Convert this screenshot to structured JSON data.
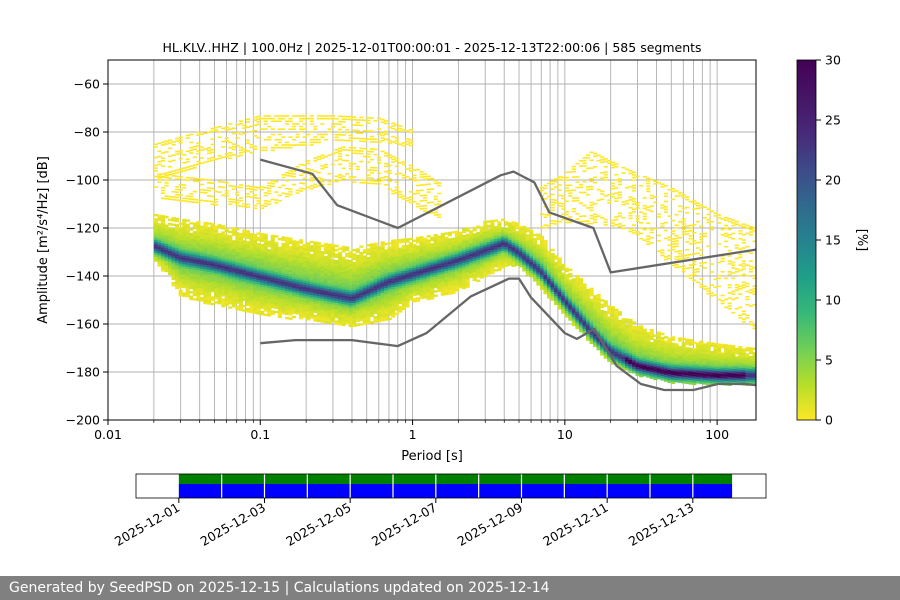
{
  "chart_data": {
    "type": "heatmap",
    "title": "HL.KLV..HHZ | 100.0Hz | 2025-12-01T00:00:01 - 2025-12-13T22:00:06 | 585 segments",
    "xlabel": "Period [s]",
    "ylabel": "Amplitude [m²/s⁴/Hz] [dB]",
    "x_scale": "log",
    "xlim": [
      0.01,
      180
    ],
    "ylim": [
      -200,
      -50
    ],
    "x_ticks": [
      "0.01",
      "0.1",
      "1",
      "10",
      "100"
    ],
    "y_ticks": [
      "−200",
      "−180",
      "−160",
      "−140",
      "−120",
      "−100",
      "−80",
      "−60"
    ],
    "grid": "vertical period grid lines + horizontal major lines",
    "colorbar": {
      "label": "[%]",
      "range": [
        0,
        30
      ],
      "ticks": [
        "0",
        "5",
        "10",
        "15",
        "20",
        "25",
        "30"
      ],
      "colormap": "viridis reversed (yellow low, purple high)"
    },
    "psd_mode": [
      [
        0.02,
        -127
      ],
      [
        0.03,
        -132
      ],
      [
        0.05,
        -135
      ],
      [
        0.1,
        -140
      ],
      [
        0.2,
        -145
      ],
      [
        0.4,
        -149
      ],
      [
        0.7,
        -142
      ],
      [
        1,
        -139
      ],
      [
        2,
        -133
      ],
      [
        3,
        -129
      ],
      [
        4,
        -126
      ],
      [
        5,
        -130
      ],
      [
        7,
        -138
      ],
      [
        10,
        -150
      ],
      [
        15,
        -163
      ],
      [
        20,
        -171
      ],
      [
        30,
        -177
      ],
      [
        50,
        -180
      ],
      [
        100,
        -181
      ],
      [
        180,
        -181
      ]
    ],
    "psd_spread_upper": [
      [
        0.02,
        -114
      ],
      [
        0.03,
        -116
      ],
      [
        0.05,
        -118
      ],
      [
        0.1,
        -122
      ],
      [
        0.2,
        -125
      ],
      [
        0.4,
        -128
      ],
      [
        0.7,
        -125
      ],
      [
        1,
        -124
      ],
      [
        2,
        -121
      ],
      [
        3,
        -117
      ],
      [
        4,
        -116
      ],
      [
        5,
        -118
      ],
      [
        7,
        -123
      ],
      [
        10,
        -135
      ],
      [
        15,
        -145
      ],
      [
        20,
        -152
      ],
      [
        30,
        -160
      ],
      [
        50,
        -165
      ],
      [
        100,
        -168
      ],
      [
        180,
        -170
      ]
    ],
    "psd_spread_lower": [
      [
        0.02,
        -132
      ],
      [
        0.03,
        -148
      ],
      [
        0.05,
        -152
      ],
      [
        0.1,
        -156
      ],
      [
        0.2,
        -158
      ],
      [
        0.4,
        -161
      ],
      [
        0.7,
        -158
      ],
      [
        1,
        -151
      ],
      [
        2,
        -146
      ],
      [
        3,
        -140
      ],
      [
        4,
        -136
      ],
      [
        5,
        -135
      ],
      [
        7,
        -145
      ],
      [
        10,
        -156
      ],
      [
        15,
        -168
      ],
      [
        20,
        -176
      ],
      [
        30,
        -181
      ],
      [
        50,
        -184
      ],
      [
        100,
        -185
      ],
      [
        180,
        -185
      ]
    ],
    "outlier_clouds": [
      {
        "upper": [
          [
            0.02,
            -85
          ],
          [
            0.05,
            -78
          ],
          [
            0.1,
            -73
          ],
          [
            0.3,
            -73
          ],
          [
            0.6,
            -74
          ],
          [
            1,
            -79
          ]
        ],
        "lower": [
          [
            0.02,
            -100
          ],
          [
            0.05,
            -92
          ],
          [
            0.1,
            -88
          ],
          [
            0.3,
            -84
          ],
          [
            0.6,
            -84
          ],
          [
            1,
            -86
          ]
        ]
      },
      {
        "upper": [
          [
            0.02,
            -97
          ],
          [
            0.05,
            -100
          ],
          [
            0.1,
            -103
          ],
          [
            0.2,
            -92
          ],
          [
            0.35,
            -86
          ],
          [
            0.6,
            -87
          ],
          [
            1,
            -94
          ],
          [
            1.5,
            -101
          ]
        ],
        "lower": [
          [
            0.02,
            -108
          ],
          [
            0.05,
            -110
          ],
          [
            0.1,
            -112
          ],
          [
            0.2,
            -104
          ],
          [
            0.35,
            -100
          ],
          [
            0.6,
            -102
          ],
          [
            1,
            -110
          ],
          [
            1.5,
            -116
          ]
        ]
      },
      {
        "upper": [
          [
            7,
            -103
          ],
          [
            10,
            -97
          ],
          [
            15,
            -88
          ],
          [
            25,
            -95
          ],
          [
            50,
            -103
          ],
          [
            100,
            -114
          ],
          [
            180,
            -120
          ]
        ],
        "lower": [
          [
            7,
            -120
          ],
          [
            10,
            -118
          ],
          [
            15,
            -118
          ],
          [
            25,
            -120
          ],
          [
            50,
            -135
          ],
          [
            100,
            -150
          ],
          [
            180,
            -163
          ]
        ]
      }
    ],
    "noise_model_high": [
      [
        0.1,
        -91.5
      ],
      [
        0.22,
        -97.4
      ],
      [
        0.32,
        -110.5
      ],
      [
        0.8,
        -120
      ],
      [
        3.8,
        -98
      ],
      [
        4.6,
        -96.5
      ],
      [
        6.3,
        -101
      ],
      [
        7.9,
        -113.5
      ],
      [
        15.4,
        -120
      ],
      [
        20,
        -138.5
      ],
      [
        180,
        -129
      ]
    ],
    "noise_model_low": [
      [
        0.1,
        -168
      ],
      [
        0.17,
        -166.7
      ],
      [
        0.4,
        -166.7
      ],
      [
        0.8,
        -169.2
      ],
      [
        1.24,
        -163.7
      ],
      [
        2.4,
        -148.6
      ],
      [
        4.3,
        -141.1
      ],
      [
        5.0,
        -141.1
      ],
      [
        6.0,
        -149
      ],
      [
        10,
        -163.8
      ],
      [
        12,
        -166.2
      ],
      [
        15.6,
        -162.1
      ],
      [
        21.9,
        -177.5
      ],
      [
        31.6,
        -185
      ],
      [
        45,
        -187.5
      ],
      [
        70,
        -187.5
      ],
      [
        101,
        -185
      ],
      [
        154,
        -185
      ],
      [
        180,
        -185.5
      ]
    ],
    "availability": {
      "x_range": [
        "2025-11-30T00:00",
        "2025-12-14T17:00"
      ],
      "data_span": [
        "2025-12-01T00:00",
        "2025-12-13T22:00"
      ],
      "colors": {
        "top": "#008000",
        "bottom": "#0000ff"
      },
      "x_ticks": [
        "2025-12-01",
        "2025-12-03",
        "2025-12-05",
        "2025-12-07",
        "2025-12-09",
        "2025-12-11",
        "2025-12-13"
      ]
    }
  },
  "footer": {
    "text": "Generated by SeedPSD on 2025-12-15 | Calculations updated on 2025-12-14"
  }
}
